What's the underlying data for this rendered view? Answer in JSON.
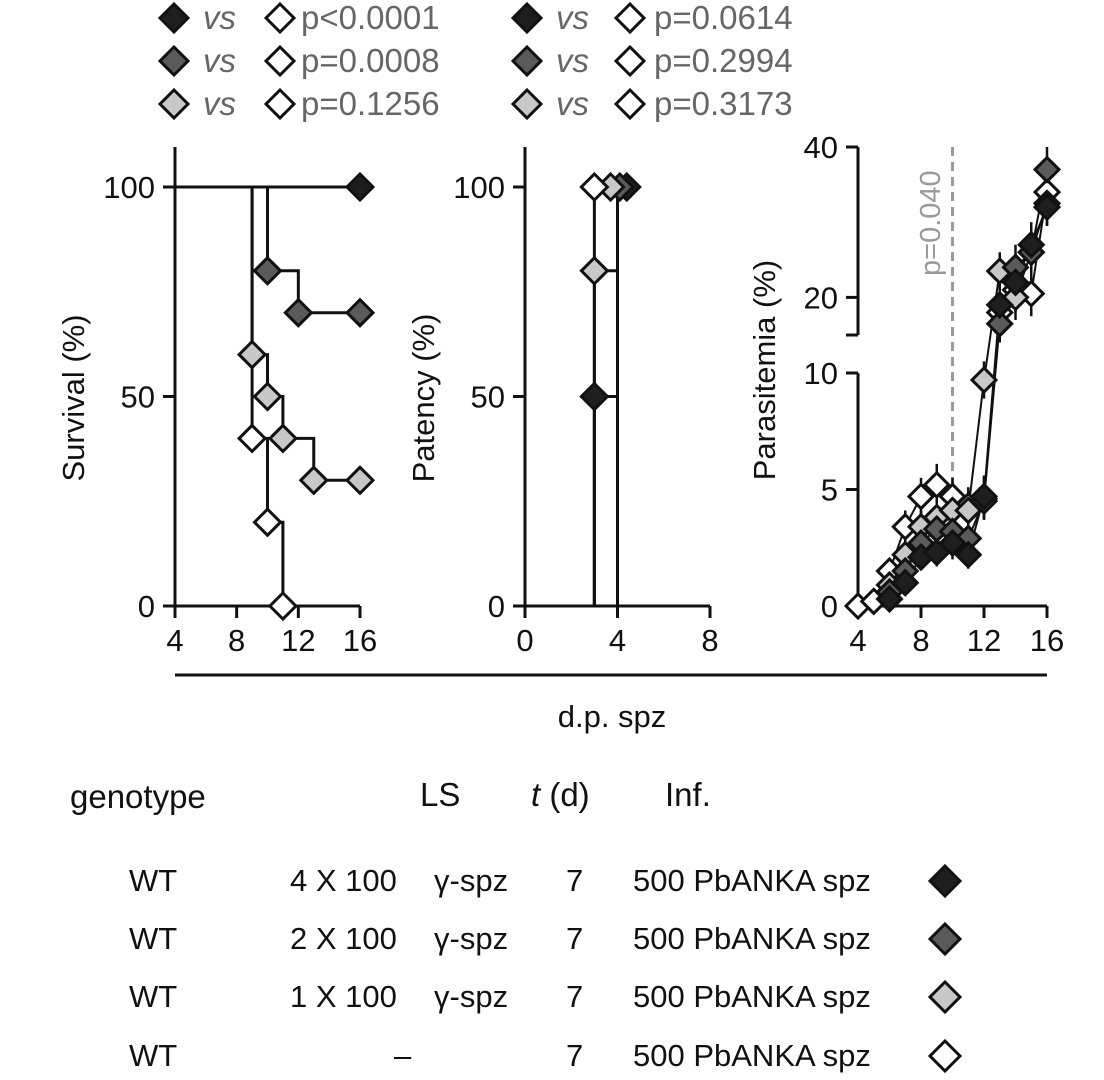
{
  "colors": {
    "group_1": "#1e1e1e",
    "group_2": "#5a5a5a",
    "group_3": "#c8c8c8",
    "group_4": "#ffffff",
    "outline": "#111111",
    "annotation": "#9a9a9a"
  },
  "legend": {
    "vs": "vs",
    "left_column": [
      {
        "left_fill": "group_1",
        "p": "p<0.0001"
      },
      {
        "left_fill": "group_2",
        "p": "p=0.0008"
      },
      {
        "left_fill": "group_3",
        "p": "p=0.1256"
      }
    ],
    "right_column": [
      {
        "left_fill": "group_1",
        "p": "p=0.0614"
      },
      {
        "left_fill": "group_2",
        "p": "p=0.2994"
      },
      {
        "left_fill": "group_3",
        "p": "p=0.3173"
      }
    ]
  },
  "shared_xlabel": "d.p. spz",
  "chart_data": [
    {
      "type": "line",
      "step": true,
      "ylabel": "Survival (%)",
      "xlim": [
        4,
        16
      ],
      "xticks": [
        "4",
        "8",
        "12",
        "16"
      ],
      "ylim": [
        0,
        100
      ],
      "yticks": [
        "0",
        "50",
        "100"
      ],
      "series": [
        {
          "color": "group_1",
          "x": [
            4,
            16
          ],
          "y": [
            100,
            100
          ],
          "markers": [
            [
              16,
              100
            ]
          ]
        },
        {
          "color": "group_2",
          "x": [
            4,
            10,
            10,
            12,
            12,
            16
          ],
          "y": [
            100,
            100,
            80,
            80,
            70,
            70
          ],
          "markers": [
            [
              10,
              80
            ],
            [
              12,
              70
            ],
            [
              16,
              70
            ]
          ]
        },
        {
          "color": "group_3",
          "x": [
            4,
            9,
            9,
            10,
            10,
            11,
            11,
            13,
            13,
            16
          ],
          "y": [
            100,
            100,
            60,
            60,
            50,
            50,
            40,
            40,
            30,
            30
          ],
          "markers": [
            [
              9,
              60
            ],
            [
              10,
              50
            ],
            [
              11,
              40
            ],
            [
              13,
              30
            ],
            [
              16,
              30
            ]
          ]
        },
        {
          "color": "group_4",
          "x": [
            4,
            9,
            9,
            10,
            10,
            11,
            11,
            16
          ],
          "y": [
            100,
            100,
            40,
            40,
            20,
            20,
            0,
            0
          ],
          "markers": [
            [
              9,
              40
            ],
            [
              10,
              20
            ],
            [
              11,
              0
            ]
          ]
        }
      ]
    },
    {
      "type": "line",
      "step": true,
      "ylabel": "Patency (%)",
      "xlim": [
        0,
        8
      ],
      "xticks": [
        "0",
        "4",
        "8"
      ],
      "ylim": [
        0,
        100
      ],
      "yticks": [
        "0",
        "50",
        "100"
      ],
      "series": [
        {
          "color": "group_1",
          "x": [
            3,
            3,
            4,
            4
          ],
          "y": [
            0,
            50,
            50,
            100
          ],
          "markers": [
            [
              3,
              50
            ],
            [
              4.4,
              100
            ]
          ]
        },
        {
          "color": "group_2",
          "x": [
            4,
            4
          ],
          "y": [
            0,
            100
          ],
          "markers": [
            [
              4.1,
              100
            ]
          ]
        },
        {
          "color": "group_3",
          "x": [
            3,
            3,
            4,
            4
          ],
          "y": [
            0,
            80,
            80,
            100
          ],
          "markers": [
            [
              3,
              80
            ],
            [
              3.7,
              100
            ]
          ]
        },
        {
          "color": "group_4",
          "x": [
            3,
            3
          ],
          "y": [
            0,
            100
          ],
          "markers": [
            [
              3,
              100
            ]
          ]
        }
      ]
    },
    {
      "type": "scatter",
      "ylabel": "Parasitemia (%)",
      "xlim": [
        4,
        16
      ],
      "xticks": [
        "4",
        "8",
        "12",
        "16"
      ],
      "ylim": [
        0,
        40
      ],
      "yticks": [
        "0",
        "5",
        "10",
        "20",
        "40"
      ],
      "broken_y": true,
      "annotation": {
        "text": "p=0.040",
        "x": 10
      },
      "series": [
        {
          "color": "group_1",
          "x": [
            6,
            7,
            8,
            9,
            10,
            11,
            12,
            13,
            14,
            15,
            16
          ],
          "y": [
            0.3,
            1.0,
            2.1,
            2.3,
            2.7,
            2.2,
            4.7,
            19,
            22,
            27,
            32
          ],
          "err": [
            0.3,
            0.4,
            0.5,
            0.6,
            0.7,
            0.6,
            0.9,
            2.5,
            3,
            3,
            2.5
          ]
        },
        {
          "color": "group_2",
          "x": [
            6,
            7,
            8,
            9,
            10,
            11,
            12,
            13,
            14,
            15,
            16
          ],
          "y": [
            0.6,
            1.5,
            2.7,
            3.3,
            3.2,
            2.9,
            4.5,
            16.5,
            24,
            26,
            37
          ],
          "err": [
            0.3,
            0.5,
            0.6,
            0.7,
            0.7,
            0.7,
            0.8,
            2.5,
            3,
            3,
            3
          ]
        },
        {
          "color": "group_3",
          "x": [
            6,
            7,
            8,
            9,
            10,
            11,
            12,
            13,
            14,
            15,
            16
          ],
          "y": [
            0.9,
            2.2,
            3.4,
            3.8,
            4.1,
            4.1,
            9.7,
            23.5,
            20,
            26,
            32.5
          ],
          "err": [
            0.4,
            0.5,
            0.7,
            0.7,
            0.8,
            0.8,
            0.8,
            2.5,
            3,
            3,
            3
          ]
        },
        {
          "color": "group_4",
          "x": [
            4,
            5,
            6,
            7,
            8,
            9,
            10,
            11,
            12,
            13,
            14,
            15,
            16
          ],
          "y": [
            0,
            0.2,
            1.5,
            3.4,
            4.7,
            5.2,
            4.7,
            4.3,
            4.6,
            18,
            21,
            20.5,
            34
          ],
          "err": [
            0,
            0.2,
            0.5,
            0.7,
            0.8,
            0.9,
            0.8,
            0.8,
            0.9,
            2.5,
            3,
            3,
            3
          ]
        }
      ]
    }
  ],
  "table": {
    "headers": {
      "genotype": "genotype",
      "ls": "LS",
      "t_italic": "t",
      "t_unit": " (d)",
      "inf": "Inf."
    },
    "rows": [
      {
        "genotype": "WT",
        "ls_dose": "4 X 100",
        "ls_agent": "γ-spz",
        "t": "7",
        "inf": "500 PbANKA spz",
        "fill": "group_1"
      },
      {
        "genotype": "WT",
        "ls_dose": "2 X 100",
        "ls_agent": "γ-spz",
        "t": "7",
        "inf": "500 PbANKA spz",
        "fill": "group_2"
      },
      {
        "genotype": "WT",
        "ls_dose": "1 X 100",
        "ls_agent": "γ-spz",
        "t": "7",
        "inf": "500 PbANKA spz",
        "fill": "group_3"
      },
      {
        "genotype": "WT",
        "ls_dose": "–",
        "ls_agent": "",
        "t": "7",
        "inf": "500 PbANKA spz",
        "fill": "group_4"
      }
    ]
  }
}
